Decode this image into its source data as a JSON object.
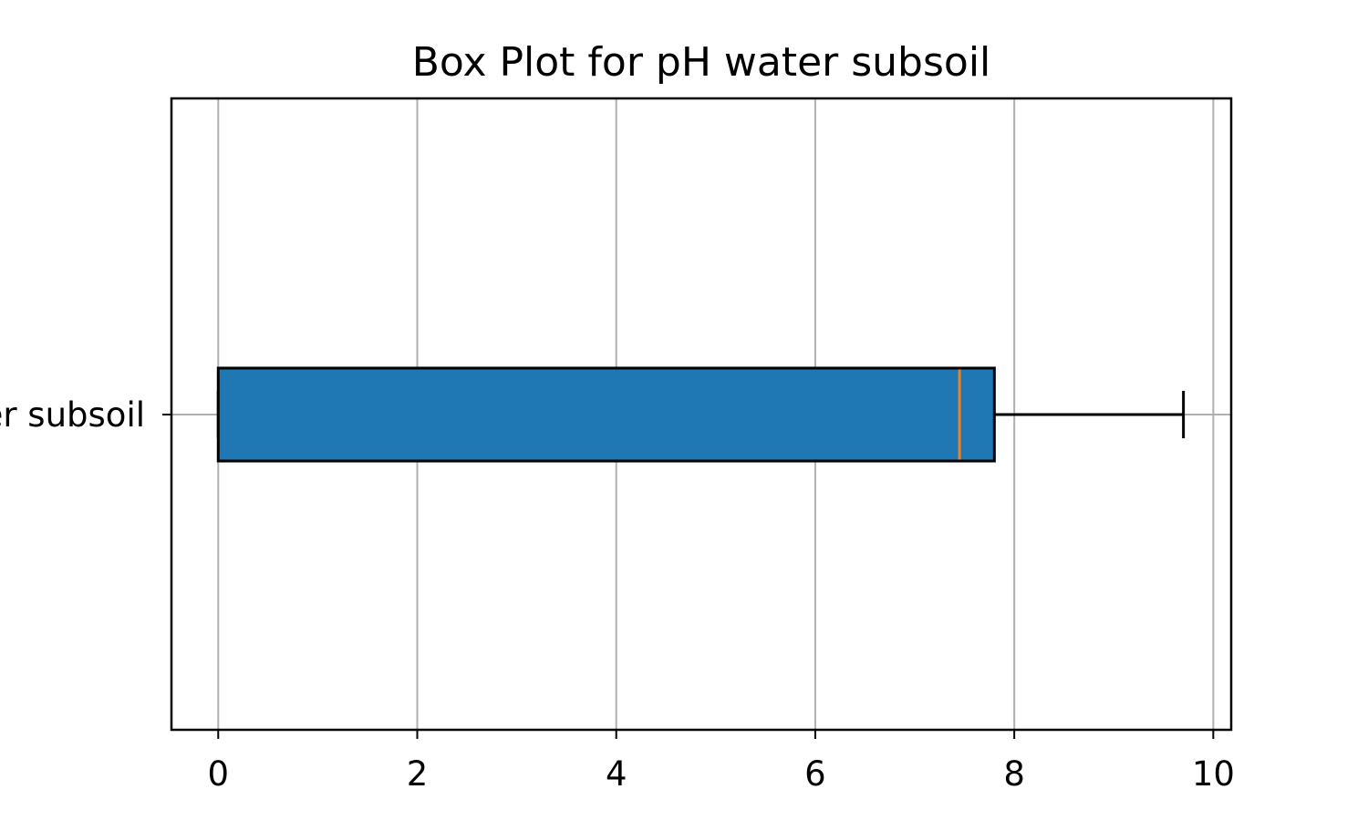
{
  "chart_data": {
    "type": "boxplot",
    "orientation": "horizontal",
    "title": "Box Plot for pH water subsoil",
    "xlabel": "",
    "ylabel": "",
    "category_label": "pH water subsoil",
    "xlim": [
      -0.47,
      10.18
    ],
    "x_ticks": [
      0,
      2,
      4,
      6,
      8,
      10
    ],
    "x_tick_labels": [
      "0",
      "2",
      "4",
      "6",
      "8",
      "10"
    ],
    "grid": true,
    "box": {
      "whisker_low": 0,
      "q1": 0,
      "median": 7.45,
      "q3": 7.8,
      "whisker_high": 9.7
    },
    "colors": {
      "box_fill": "#1f77b4",
      "median": "#ff7f0e",
      "edges": "#000000",
      "grid": "#b0b0b0"
    }
  }
}
